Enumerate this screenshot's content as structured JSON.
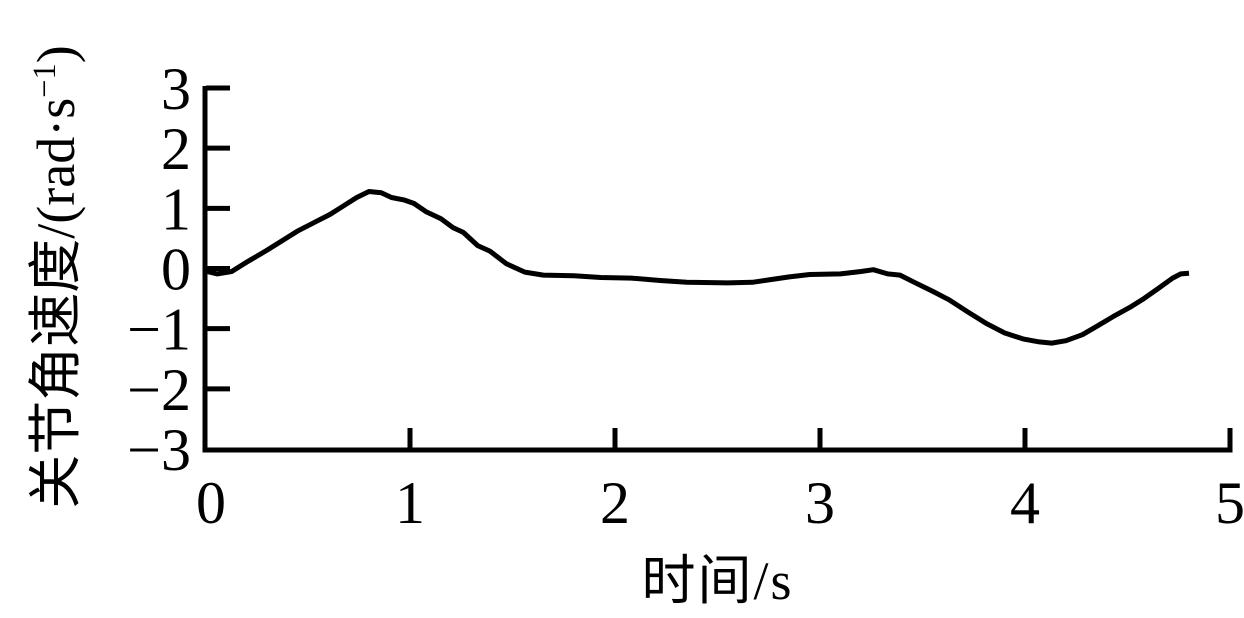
{
  "figure": {
    "background": "#ffffff",
    "foreground": "#000000"
  },
  "chart_data": {
    "type": "line",
    "title": "",
    "xlabel": "时间/s",
    "ylabel": "关节角速度/(rad·s⁻¹)",
    "ylabel_prefix": "关节角速度/(rad·s",
    "ylabel_sup": "−1",
    "ylabel_suffix": ")",
    "xlim": [
      0,
      5
    ],
    "ylim": [
      -3,
      3
    ],
    "x_ticks": [
      0,
      1,
      2,
      3,
      4,
      5
    ],
    "x_tick_labels": [
      "0",
      "1",
      "2",
      "3",
      "4",
      "5"
    ],
    "y_ticks": [
      3,
      2,
      1,
      0,
      -1,
      -2,
      -3
    ],
    "y_tick_labels": [
      "3",
      "2",
      "1",
      "0",
      "−1",
      "−2",
      "−3"
    ],
    "grid": false,
    "legend_position": "none",
    "line_color": "#000000",
    "line_width": 5,
    "series": [
      {
        "name": "关节角速度",
        "x": [
          0.0,
          0.06,
          0.13,
          0.21,
          0.3,
          0.38,
          0.45,
          0.53,
          0.61,
          0.68,
          0.74,
          0.8,
          0.86,
          0.91,
          0.97,
          1.02,
          1.08,
          1.15,
          1.21,
          1.26,
          1.33,
          1.39,
          1.47,
          1.56,
          1.65,
          1.8,
          1.93,
          2.08,
          2.22,
          2.35,
          2.55,
          2.67,
          2.75,
          2.85,
          2.95,
          3.1,
          3.2,
          3.26,
          3.33,
          3.39,
          3.46,
          3.55,
          3.63,
          3.72,
          3.81,
          3.9,
          3.99,
          4.07,
          4.13,
          4.2,
          4.28,
          4.35,
          4.43,
          4.51,
          4.58,
          4.65,
          4.72,
          4.76,
          4.8
        ],
        "y": [
          -0.04,
          -0.09,
          -0.05,
          0.12,
          0.3,
          0.47,
          0.62,
          0.76,
          0.9,
          1.05,
          1.18,
          1.28,
          1.26,
          1.18,
          1.14,
          1.08,
          0.94,
          0.83,
          0.68,
          0.6,
          0.38,
          0.29,
          0.08,
          -0.06,
          -0.11,
          -0.12,
          -0.15,
          -0.16,
          -0.2,
          -0.23,
          -0.24,
          -0.23,
          -0.19,
          -0.14,
          -0.1,
          -0.09,
          -0.05,
          -0.02,
          -0.09,
          -0.11,
          -0.23,
          -0.38,
          -0.52,
          -0.72,
          -0.91,
          -1.07,
          -1.17,
          -1.22,
          -1.24,
          -1.2,
          -1.1,
          -0.96,
          -0.8,
          -0.65,
          -0.5,
          -0.33,
          -0.16,
          -0.09,
          -0.08
        ]
      }
    ]
  }
}
